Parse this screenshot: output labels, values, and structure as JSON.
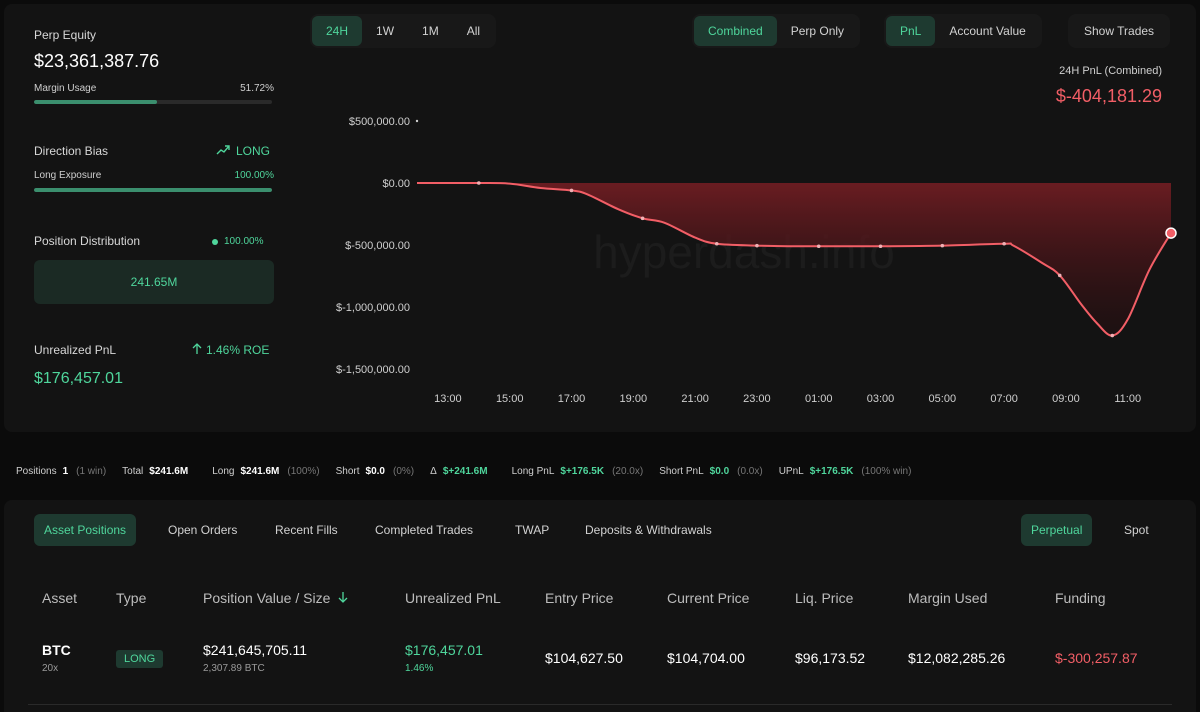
{
  "left": {
    "perp_equity_label": "Perp Equity",
    "perp_equity_value": "$23,361,387.76",
    "margin_usage_label": "Margin Usage",
    "margin_usage_value": "51.72%",
    "margin_usage_fraction": 0.5172,
    "direction_bias_label": "Direction Bias",
    "direction_bias_value": "LONG",
    "long_exposure_label": "Long Exposure",
    "long_exposure_value": "100.00%",
    "long_exposure_fraction": 1.0,
    "position_distribution_label": "Position Distribution",
    "position_distribution_value": "100.00%",
    "distribution_box_value": "241.65M",
    "unrealized_pnl_label": "Unrealized PnL",
    "roe_value": "1.46% ROE",
    "unrealized_pnl_value": "$176,457.01"
  },
  "controls": {
    "time_ranges": [
      "24H",
      "1W",
      "1M",
      "All"
    ],
    "active_time_range": "24H",
    "modes": [
      "Combined",
      "Perp Only"
    ],
    "active_mode": "Combined",
    "metrics": [
      "PnL",
      "Account Value"
    ],
    "active_metric": "PnL",
    "show_trades_label": "Show Trades"
  },
  "chart_data": {
    "type": "area",
    "title": "24H PnL (Combined)",
    "current_value_label": "$-404,181.29",
    "watermark": "hyperdash.info",
    "y_ticks": [
      "$500,000.00",
      "$0.00",
      "$-500,000.00",
      "$-1,000,000.00",
      "$-1,500,000.00"
    ],
    "y_tick_values": [
      500000,
      0,
      -500000,
      -1000000,
      -1500000
    ],
    "x_ticks": [
      "13:00",
      "15:00",
      "17:00",
      "19:00",
      "21:00",
      "23:00",
      "01:00",
      "03:00",
      "05:00",
      "07:00",
      "09:00",
      "11:00"
    ],
    "ylim": [
      -1500000,
      500000
    ],
    "x_hours_range": [
      12.0,
      36.4
    ],
    "points": [
      {
        "x": 12.0,
        "y": 0
      },
      {
        "x": 14.0,
        "y": 0
      },
      {
        "x": 15.0,
        "y": -5000
      },
      {
        "x": 16.0,
        "y": -40000
      },
      {
        "x": 17.0,
        "y": -60000
      },
      {
        "x": 17.5,
        "y": -90000
      },
      {
        "x": 18.5,
        "y": -210000
      },
      {
        "x": 19.3,
        "y": -285000
      },
      {
        "x": 20.0,
        "y": -320000
      },
      {
        "x": 21.0,
        "y": -440000
      },
      {
        "x": 21.7,
        "y": -490000
      },
      {
        "x": 23.0,
        "y": -505000
      },
      {
        "x": 24.0,
        "y": -510000
      },
      {
        "x": 25.0,
        "y": -510000
      },
      {
        "x": 27.0,
        "y": -510000
      },
      {
        "x": 29.0,
        "y": -505000
      },
      {
        "x": 31.0,
        "y": -490000
      },
      {
        "x": 31.3,
        "y": -505000
      },
      {
        "x": 32.2,
        "y": -640000
      },
      {
        "x": 32.8,
        "y": -745000
      },
      {
        "x": 33.5,
        "y": -980000
      },
      {
        "x": 34.0,
        "y": -1130000
      },
      {
        "x": 34.5,
        "y": -1230000
      },
      {
        "x": 35.0,
        "y": -1100000
      },
      {
        "x": 35.7,
        "y": -700000
      },
      {
        "x": 36.4,
        "y": -404181.29
      }
    ]
  },
  "summary": [
    {
      "key": "Positions",
      "value": "1",
      "paren": "(1 win)"
    },
    {
      "key": "Total",
      "value": "$241.6M",
      "paren": ""
    },
    {
      "key": "Long",
      "value": "$241.6M",
      "paren": "(100%)"
    },
    {
      "key": "Short",
      "value": "$0.0",
      "paren": "(0%)"
    },
    {
      "key": "Δ",
      "value": "$+241.6M",
      "paren": "",
      "green": true
    },
    {
      "key": "Long PnL",
      "value": "$+176.5K",
      "paren": "(20.0x)",
      "green": true
    },
    {
      "key": "Short PnL",
      "value": "$0.0",
      "paren": "(0.0x)",
      "green": true
    },
    {
      "key": "UPnL",
      "value": "$+176.5K",
      "paren": "(100% win)",
      "green": true
    }
  ],
  "tabs": [
    "Asset Positions",
    "Open Orders",
    "Recent Fills",
    "Completed Trades",
    "TWAP",
    "Deposits & Withdrawals"
  ],
  "active_tab": "Asset Positions",
  "market_types": [
    "Perpetual",
    "Spot"
  ],
  "active_market_type": "Perpetual",
  "table": {
    "headers": [
      "Asset",
      "Type",
      "Position Value / Size",
      "Unrealized PnL",
      "Entry Price",
      "Current Price",
      "Liq. Price",
      "Margin Used",
      "Funding"
    ],
    "row": {
      "asset": "BTC",
      "leverage": "20x",
      "type": "LONG",
      "position_value": "$241,645,705.11",
      "position_size": "2,307.89 BTC",
      "unrealized_pnl": "$176,457.01",
      "unrealized_pct": "1.46%",
      "entry_price": "$104,627.50",
      "current_price": "$104,704.00",
      "liq_price": "$96,173.52",
      "margin_used": "$12,082,285.26",
      "funding": "$-300,257.87"
    }
  },
  "colors": {
    "accent_green": "#4fd69c",
    "loss_red": "#f25e66",
    "area_top": "#6e1d22",
    "background": "#0b0b0b"
  }
}
